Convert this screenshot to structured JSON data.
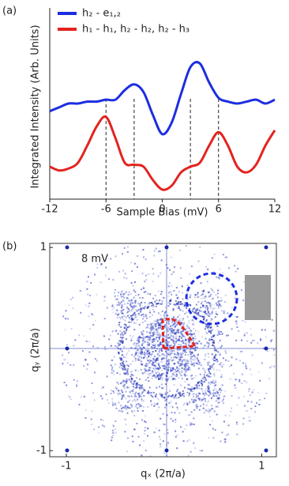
{
  "chart_data": [
    {
      "type": "line",
      "label": "(a)",
      "x_label": "Sample Bias (mV)",
      "y_label": "Integrated Intensity (Arb. Units)",
      "x": [
        -12,
        -11,
        -10,
        -9,
        -8,
        -7,
        -6,
        -5,
        -4,
        -3,
        -2,
        -1,
        0,
        1,
        2,
        3,
        4,
        5,
        6,
        7,
        8,
        9,
        10,
        11,
        12
      ],
      "series": [
        {
          "name": "h₂ - e₁,₂",
          "color": "#1c2ee0",
          "values": [
            4.6,
            4.8,
            5.0,
            5.0,
            5.1,
            5.1,
            5.2,
            5.2,
            5.7,
            6.0,
            5.6,
            4.4,
            3.4,
            4.0,
            5.5,
            6.9,
            7.1,
            6.1,
            5.3,
            5.1,
            5.0,
            5.1,
            5.2,
            5.0,
            5.2
          ]
        },
        {
          "name": "h₁ - h₁, h₂ - h₂, h₂ - h₃",
          "color": "#e3231f",
          "values": [
            1.7,
            1.5,
            1.6,
            1.9,
            2.8,
            3.8,
            4.3,
            3.2,
            1.9,
            1.8,
            1.7,
            1.0,
            0.5,
            0.7,
            1.4,
            1.7,
            1.9,
            2.8,
            3.5,
            2.8,
            1.7,
            1.4,
            1.8,
            2.8,
            3.6
          ]
        }
      ],
      "vlines": [
        -6,
        -3,
        3,
        6
      ],
      "xlim": [
        -12,
        12
      ],
      "xticks": [
        -12,
        -6,
        0,
        6,
        12
      ],
      "ylim": [
        0,
        10
      ]
    },
    {
      "type": "image",
      "label": "(b)",
      "annotation": "8 mV",
      "x_label": "qₓ (2π/a)",
      "y_label": "qᵧ (2π/a)",
      "xlim": [
        -1.17,
        1.15
      ],
      "xticks": [
        -1,
        1
      ],
      "ylim": [
        -1.06,
        1.04
      ],
      "yticks": [
        -1,
        1
      ]
    }
  ]
}
